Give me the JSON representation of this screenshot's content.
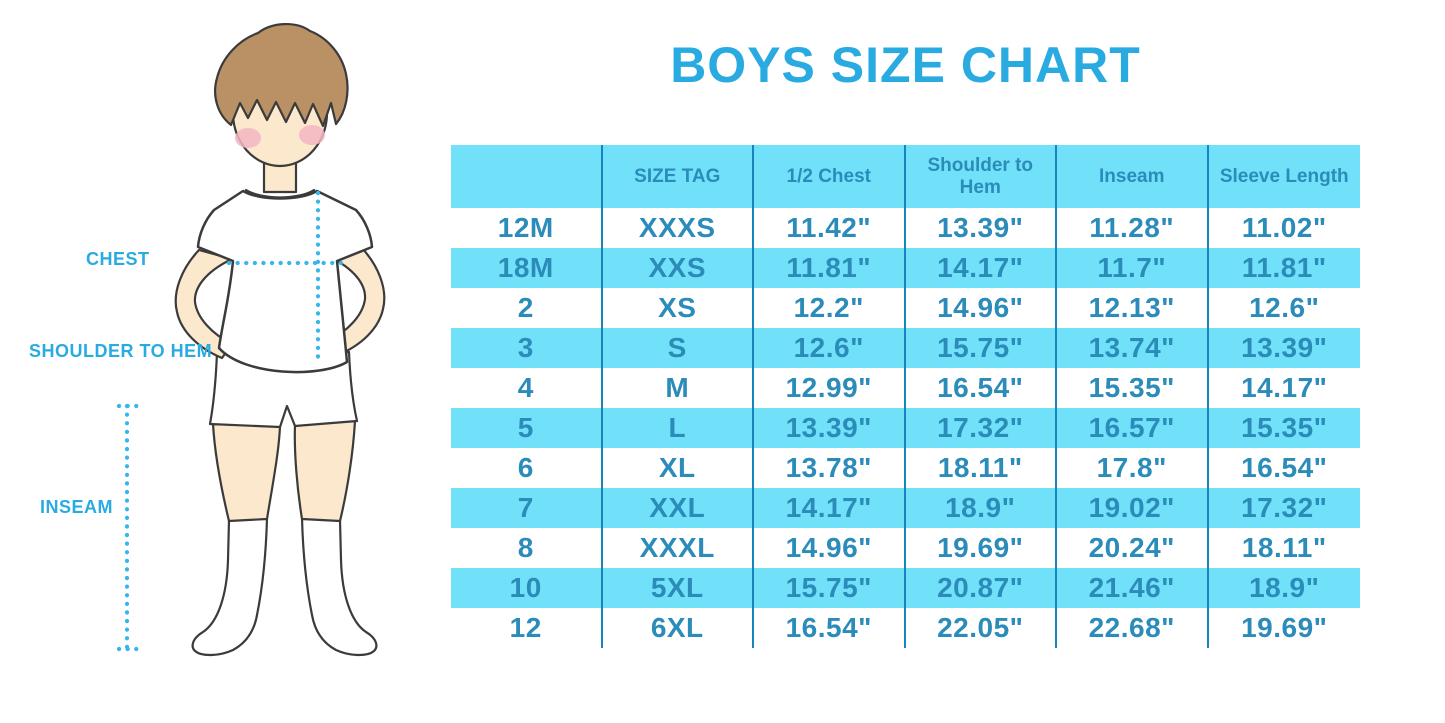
{
  "title": "BOYS SIZE CHART",
  "illustration": {
    "description": "boy in white t-shirt, shorts and knee socks with measurement guide lines",
    "chest_label": "CHEST",
    "shoulder_to_hem_label": "SHOULDER TO HEM",
    "inseam_label": "INSEAM"
  },
  "chart_data": {
    "type": "table",
    "title": "BOYS SIZE CHART",
    "columns": [
      "",
      "SIZE TAG",
      "1/2 Chest",
      "Shoulder to Hem",
      "Inseam",
      "Sleeve Length"
    ],
    "rows": [
      [
        "12M",
        "XXXS",
        "11.42\"",
        "13.39\"",
        "11.28\"",
        "11.02\""
      ],
      [
        "18M",
        "XXS",
        "11.81\"",
        "14.17\"",
        "11.7\"",
        "11.81\""
      ],
      [
        "2",
        "XS",
        "12.2\"",
        "14.96\"",
        "12.13\"",
        "12.6\""
      ],
      [
        "3",
        "S",
        "12.6\"",
        "15.75\"",
        "13.74\"",
        "13.39\""
      ],
      [
        "4",
        "M",
        "12.99\"",
        "16.54\"",
        "15.35\"",
        "14.17\""
      ],
      [
        "5",
        "L",
        "13.39\"",
        "17.32\"",
        "16.57\"",
        "15.35\""
      ],
      [
        "6",
        "XL",
        "13.78\"",
        "18.11\"",
        "17.8\"",
        "16.54\""
      ],
      [
        "7",
        "XXL",
        "14.17\"",
        "18.9\"",
        "19.02\"",
        "17.32\""
      ],
      [
        "8",
        "XXXL",
        "14.96\"",
        "19.69\"",
        "20.24\"",
        "18.11\""
      ],
      [
        "10",
        "5XL",
        "15.75\"",
        "20.87\"",
        "21.46\"",
        "18.9\""
      ],
      [
        "12",
        "6XL",
        "16.54\"",
        "22.05\"",
        "22.68\"",
        "19.69\""
      ]
    ],
    "row_striping": "header and odd data rows cyan, others white",
    "units": "inches"
  },
  "colors": {
    "accent_blue": "#29ABE2",
    "row_cyan": "#71E1FA",
    "table_text": "#2B8BB9",
    "column_divider": "#1785BD",
    "dotted_line": "#35B7E9",
    "hair": "#BA9164",
    "skin": "#FBE8CD",
    "cheek": "#F3B6C3",
    "outline": "#3B3B3B"
  }
}
